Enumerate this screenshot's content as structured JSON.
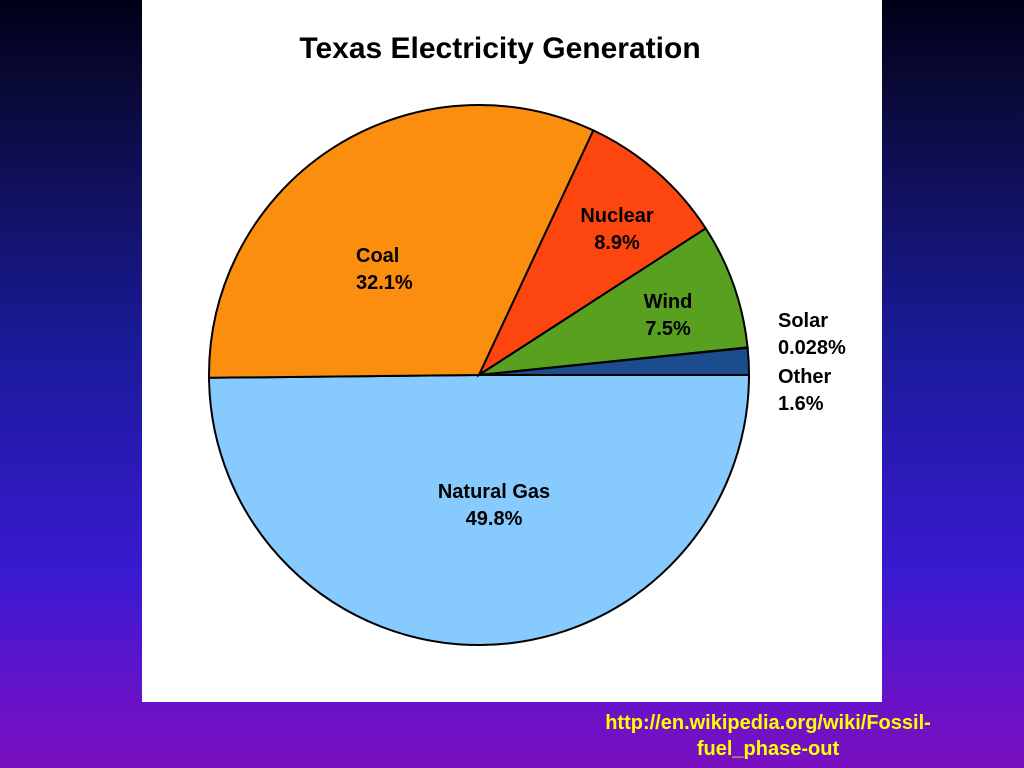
{
  "slide": {
    "source_caption_line1": "http://en.wikipedia.org/wiki/Fossil-",
    "source_caption_line2": "fuel_phase-out"
  },
  "chart_data": {
    "type": "pie",
    "title": "Texas Electricity Generation",
    "slices": [
      {
        "label": "Natural Gas",
        "value_label": "49.8%",
        "value": 49.8,
        "color": "#87cafd"
      },
      {
        "label": "Coal",
        "value_label": "32.1%",
        "value": 32.1,
        "color": "#fb8e0e"
      },
      {
        "label": "Nuclear",
        "value_label": "8.9%",
        "value": 8.9,
        "color": "#fd4510"
      },
      {
        "label": "Wind",
        "value_label": "7.5%",
        "value": 7.5,
        "color": "#59a020"
      },
      {
        "label": "Solar",
        "value_label": "0.028%",
        "value": 0.028,
        "color": "#1a4c8e"
      },
      {
        "label": "Other",
        "value_label": "1.6%",
        "value": 1.6,
        "color": "#1a4c8e"
      }
    ],
    "start_angle_deg": 0,
    "direction": "clockwise",
    "legend": "none",
    "grid": false
  }
}
